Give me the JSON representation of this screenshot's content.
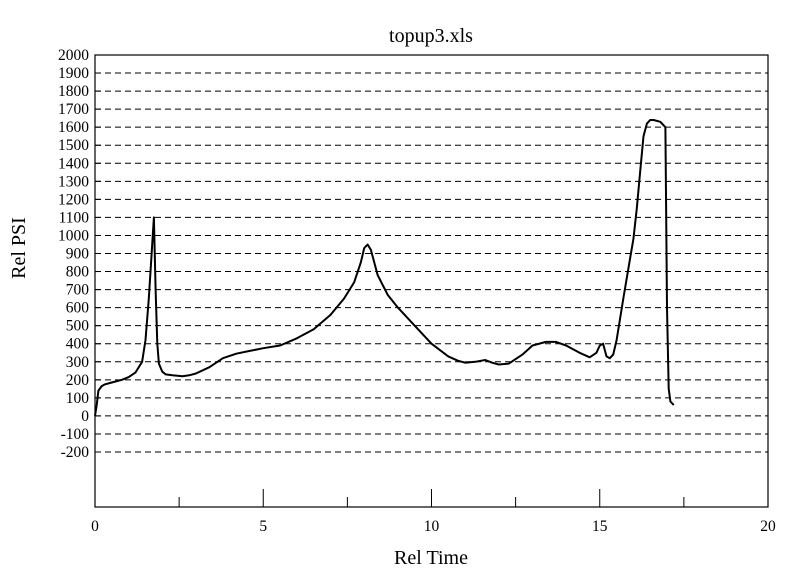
{
  "chart_data": {
    "type": "line",
    "title": "topup3.xls",
    "xlabel": "Rel Time",
    "ylabel": "Rel PSI",
    "xlim": [
      0,
      20
    ],
    "ylim": [
      -200,
      2000
    ],
    "x_ticks": [
      0,
      5,
      10,
      15,
      20
    ],
    "x_minor_ticks": [
      2.5,
      7.5,
      12.5,
      17.5
    ],
    "y_ticks": [
      -200,
      -100,
      0,
      100,
      200,
      300,
      400,
      500,
      600,
      700,
      800,
      900,
      1000,
      1100,
      1200,
      1300,
      1400,
      1500,
      1600,
      1700,
      1800,
      1900,
      2000
    ],
    "grid": "horizontal dashed",
    "legend": "none",
    "series": [
      {
        "color": "#000000",
        "x": [
          0.0,
          0.05,
          0.1,
          0.2,
          0.3,
          0.5,
          0.8,
          1.0,
          1.2,
          1.4,
          1.5,
          1.6,
          1.7,
          1.75,
          1.8,
          1.85,
          1.9,
          2.0,
          2.1,
          2.3,
          2.6,
          2.8,
          3.0,
          3.4,
          3.8,
          4.2,
          4.6,
          5.0,
          5.5,
          6.0,
          6.5,
          7.0,
          7.4,
          7.7,
          7.9,
          8.0,
          8.1,
          8.2,
          8.4,
          8.7,
          9.0,
          9.5,
          10.0,
          10.5,
          10.8,
          11.0,
          11.3,
          11.6,
          11.8,
          12.0,
          12.3,
          12.7,
          13.0,
          13.4,
          13.7,
          14.0,
          14.4,
          14.7,
          14.9,
          15.0,
          15.1,
          15.2,
          15.3,
          15.4,
          15.5,
          15.7,
          15.9,
          16.0,
          16.1,
          16.2,
          16.3,
          16.4,
          16.5,
          16.6,
          16.8,
          16.95,
          17.0,
          17.05,
          17.1,
          17.2
        ],
        "y": [
          0,
          60,
          140,
          165,
          175,
          185,
          200,
          215,
          240,
          300,
          420,
          650,
          950,
          1100,
          700,
          400,
          290,
          245,
          230,
          225,
          220,
          225,
          235,
          270,
          320,
          345,
          360,
          375,
          390,
          430,
          480,
          560,
          650,
          740,
          850,
          930,
          950,
          920,
          780,
          670,
          600,
          500,
          400,
          330,
          305,
          295,
          300,
          310,
          295,
          285,
          290,
          340,
          390,
          410,
          410,
          390,
          350,
          325,
          350,
          390,
          400,
          330,
          320,
          340,
          420,
          650,
          870,
          980,
          1150,
          1350,
          1550,
          1620,
          1640,
          1640,
          1630,
          1600,
          600,
          150,
          80,
          60
        ]
      }
    ]
  }
}
